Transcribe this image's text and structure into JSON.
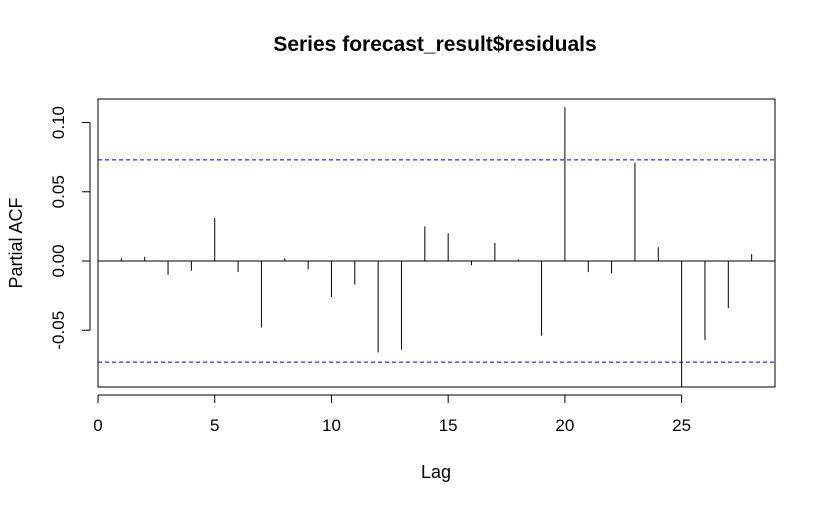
{
  "chart_data": {
    "type": "bar",
    "title": "Series  forecast_result$residuals",
    "xlabel": "Lag",
    "ylabel": "Partial ACF",
    "xlim": [
      0,
      29
    ],
    "ylim": [
      -0.091,
      0.117
    ],
    "x_ticks": [
      0,
      5,
      10,
      15,
      20,
      25
    ],
    "y_ticks": [
      -0.05,
      0.0,
      0.05,
      0.1
    ],
    "y_tick_labels": [
      "-0.05",
      "0.00",
      "0.05",
      "0.10"
    ],
    "confidence_bound": 0.073,
    "confidence_color": "#0000cc",
    "lags": [
      1,
      2,
      3,
      4,
      5,
      6,
      7,
      8,
      9,
      10,
      11,
      12,
      13,
      14,
      15,
      16,
      17,
      18,
      19,
      20,
      21,
      22,
      23,
      24,
      25,
      26,
      27,
      28
    ],
    "values": [
      0.002,
      0.003,
      -0.01,
      -0.007,
      0.031,
      -0.008,
      -0.048,
      0.002,
      -0.006,
      -0.026,
      -0.017,
      -0.066,
      -0.064,
      0.025,
      0.02,
      -0.003,
      0.013,
      0.001,
      -0.054,
      0.111,
      -0.008,
      -0.009,
      0.071,
      0.01,
      -0.091,
      -0.057,
      -0.034,
      0.005
    ],
    "grid": false,
    "legend": "none"
  }
}
